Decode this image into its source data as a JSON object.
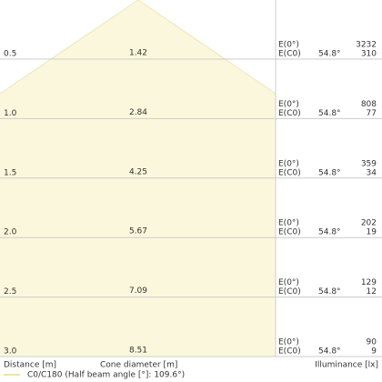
{
  "rows": [
    {
      "distance": "0.5",
      "diameter": "1.42",
      "e0_label": "E(0°)",
      "ec0_label": "E(C0)",
      "angle": "54.8°",
      "e0": "3232",
      "ec0": "310"
    },
    {
      "distance": "1.0",
      "diameter": "2.84",
      "e0_label": "E(0°)",
      "ec0_label": "E(C0)",
      "angle": "54.8°",
      "e0": "808",
      "ec0": "77"
    },
    {
      "distance": "1.5",
      "diameter": "4.25",
      "e0_label": "E(0°)",
      "ec0_label": "E(C0)",
      "angle": "54.8°",
      "e0": "359",
      "ec0": "34"
    },
    {
      "distance": "2.0",
      "diameter": "5.67",
      "e0_label": "E(0°)",
      "ec0_label": "E(C0)",
      "angle": "54.8°",
      "e0": "202",
      "ec0": "19"
    },
    {
      "distance": "2.5",
      "diameter": "7.09",
      "e0_label": "E(0°)",
      "ec0_label": "E(C0)",
      "angle": "54.8°",
      "e0": "129",
      "ec0": "12"
    },
    {
      "distance": "3.0",
      "diameter": "8.51",
      "e0_label": "E(0°)",
      "ec0_label": "E(C0)",
      "angle": "54.8°",
      "e0": "90",
      "ec0": "9"
    }
  ],
  "footer": {
    "distance_label": "Distance [m]",
    "diameter_label": "Cone diameter [m]",
    "illuminance_label": "Illuminance [lx]"
  },
  "legend": {
    "label": "C0/C180 (Half beam angle [°]: 109.6°)"
  }
}
